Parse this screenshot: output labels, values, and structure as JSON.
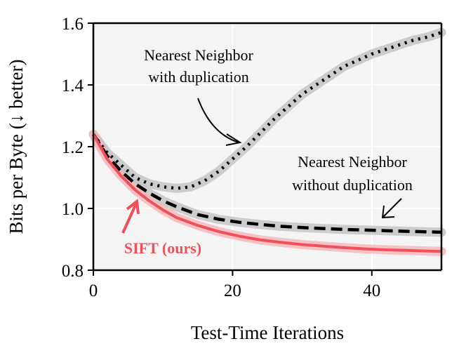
{
  "chart_data": {
    "type": "line",
    "xlabel": "Test-Time Iterations",
    "ylabel": "Bits per Byte (↓ better)",
    "xlim": [
      0,
      50
    ],
    "ylim": [
      0.8,
      1.6
    ],
    "xticks": [
      "0",
      "20",
      "40"
    ],
    "yticks": [
      "0.8",
      "1.0",
      "1.2",
      "1.4",
      "1.6"
    ],
    "grid": true,
    "legend": "none",
    "series": [
      {
        "name": "Nearest Neighbor with duplication",
        "style": "dotted",
        "color": "#000000",
        "band_color": "#c4c4c4",
        "x": [
          0,
          2,
          4,
          6,
          8,
          10,
          12,
          14,
          16,
          18,
          20,
          22,
          24,
          26,
          28,
          30,
          32,
          34,
          36,
          38,
          40,
          42,
          44,
          46,
          48,
          50
        ],
        "y": [
          1.24,
          1.18,
          1.14,
          1.1,
          1.08,
          1.07,
          1.065,
          1.07,
          1.09,
          1.12,
          1.16,
          1.2,
          1.245,
          1.29,
          1.33,
          1.37,
          1.4,
          1.43,
          1.46,
          1.48,
          1.5,
          1.515,
          1.53,
          1.545,
          1.555,
          1.57
        ]
      },
      {
        "name": "Nearest Neighbor without duplication",
        "style": "dashed",
        "color": "#000000",
        "band_color": "#c4c4c4",
        "x": [
          0,
          2,
          4,
          6,
          8,
          10,
          12,
          15,
          18,
          21,
          24,
          27,
          30,
          33,
          36,
          39,
          42,
          45,
          48,
          50
        ],
        "y": [
          1.24,
          1.17,
          1.12,
          1.08,
          1.05,
          1.025,
          1.005,
          0.98,
          0.965,
          0.955,
          0.948,
          0.942,
          0.938,
          0.935,
          0.932,
          0.93,
          0.928,
          0.926,
          0.924,
          0.923
        ]
      },
      {
        "name": "SIFT (ours)",
        "style": "solid",
        "color": "#f0505a",
        "band_color": "#f6b8bc",
        "x": [
          0,
          2,
          4,
          6,
          8,
          10,
          12,
          15,
          18,
          21,
          24,
          27,
          30,
          33,
          36,
          39,
          42,
          45,
          48,
          50
        ],
        "y": [
          1.24,
          1.16,
          1.105,
          1.06,
          1.025,
          0.995,
          0.97,
          0.945,
          0.925,
          0.91,
          0.898,
          0.89,
          0.883,
          0.878,
          0.873,
          0.869,
          0.866,
          0.864,
          0.862,
          0.861
        ]
      }
    ],
    "annotations": [
      {
        "lines": [
          "Nearest Neighbor",
          "with duplication"
        ]
      },
      {
        "lines": [
          "Nearest Neighbor",
          "without duplication"
        ]
      },
      {
        "lines": [
          "SIFT (ours)"
        ]
      }
    ]
  }
}
